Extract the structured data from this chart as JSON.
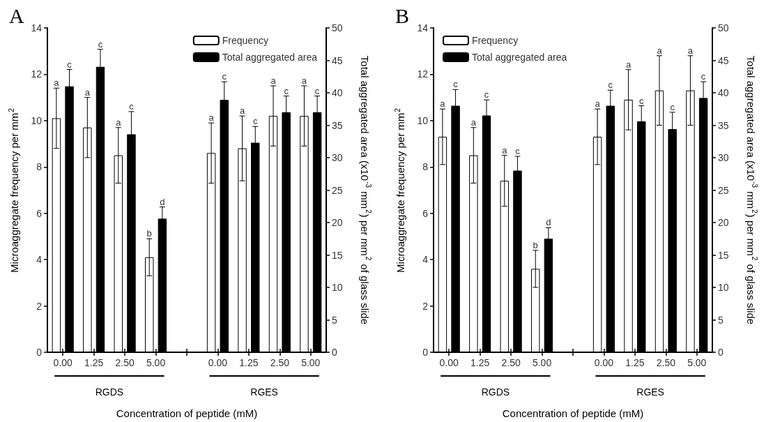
{
  "chart_data": [
    {
      "type": "bar",
      "title": "A",
      "categories": [
        "0.00",
        "1.25",
        "2.50",
        "5.00",
        null,
        "0.00",
        "1.25",
        "2.50",
        "5.00"
      ],
      "xlabel": "Concentration of peptide (mM)",
      "ylabel": "Microaggregate frequency per mm$^{2}$",
      "y2label": "Total aggregated area (x10$^{-3}$ mm$^{2}$) per mm$^{2}$ of glass slide",
      "ylim": [
        0,
        14
      ],
      "yticks": [
        0,
        2,
        4,
        6,
        8,
        10,
        12,
        14
      ],
      "y2lim": [
        0,
        50
      ],
      "y2ticks": [
        0,
        5,
        10,
        15,
        20,
        25,
        30,
        35,
        40,
        45,
        50
      ],
      "legend": "top right",
      "grid": false,
      "annotations": [
        "RGDS",
        "RGES",
        "a",
        "c",
        "a",
        "c",
        "a",
        "c",
        "b",
        "d",
        "a",
        "c",
        "a",
        "c",
        "a",
        "c",
        "a",
        "c"
      ],
      "series": [
        {
          "name": "Frequency",
          "color": "#ffffff",
          "values": [
            10.1,
            9.7,
            8.5,
            4.1,
            null,
            8.6,
            8.8,
            10.2,
            10.2
          ],
          "errors": [
            1.3,
            1.3,
            1.2,
            0.8,
            null,
            1.3,
            1.4,
            1.3,
            1.3
          ]
        },
        {
          "name": "Total aggregated area",
          "color": "#000000",
          "axis": "y2",
          "values": [
            41.0,
            44.0,
            33.6,
            20.6,
            null,
            38.9,
            32.3,
            37.0,
            37.0
          ],
          "errors": [
            2.6,
            2.7,
            3.5,
            1.8,
            null,
            2.8,
            2.5,
            2.5,
            2.5
          ]
        }
      ]
    },
    {
      "type": "bar",
      "title": "B",
      "categories": [
        "0.00",
        "1.25",
        "2.50",
        "5.00",
        null,
        "0.00",
        "1.25",
        "2.50",
        "5.00"
      ],
      "xlabel": "Concentration of peptide (mM)",
      "ylabel": "Microaggregate frequency per mm$^{2}$",
      "y2label": "Total aggregated area (x10$^{-3}$ mm$^{2}$) per mm$^{2}$ of glass slide",
      "ylim": [
        0,
        14
      ],
      "yticks": [
        0,
        2,
        4,
        6,
        8,
        10,
        12,
        14
      ],
      "y2lim": [
        0,
        50
      ],
      "y2ticks": [
        0,
        5,
        10,
        15,
        20,
        25,
        30,
        35,
        40,
        45,
        50
      ],
      "legend": "top left",
      "grid": false,
      "annotations": [
        "RGDS",
        "RGES",
        "a",
        "c",
        "a",
        "c",
        "a",
        "c",
        "b",
        "d",
        "a",
        "c",
        "a",
        "c",
        "a",
        "c",
        "a",
        "c"
      ],
      "series": [
        {
          "name": "Frequency",
          "color": "#ffffff",
          "values": [
            9.3,
            8.5,
            7.4,
            3.6,
            null,
            9.3,
            10.9,
            11.3,
            11.3
          ],
          "errors": [
            1.2,
            1.2,
            1.1,
            0.8,
            null,
            1.2,
            1.3,
            1.5,
            1.5
          ]
        },
        {
          "name": "Total aggregated area",
          "color": "#000000",
          "axis": "y2",
          "values": [
            38.0,
            36.5,
            28.0,
            17.5,
            null,
            38.0,
            35.6,
            34.4,
            39.2
          ],
          "errors": [
            2.5,
            2.4,
            2.2,
            1.7,
            null,
            2.4,
            2.4,
            2.6,
            2.5
          ]
        }
      ]
    }
  ]
}
